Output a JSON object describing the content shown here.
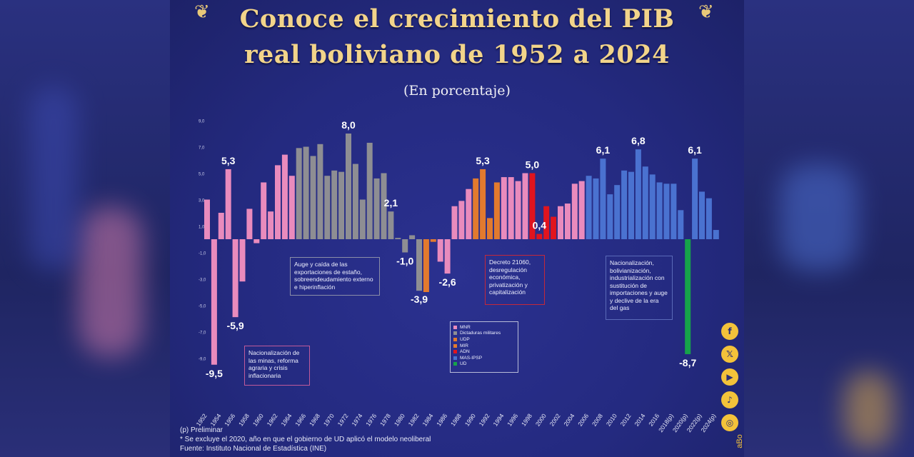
{
  "header": {
    "title_line1": "Conoce el crecimiento del PIB",
    "title_line2": "real boliviano de 1952 a 2024",
    "subtitle": "(En porcentaje)"
  },
  "notes": {
    "n1": "Nacionalización de las minas, reforma agraria y crisis inflacionaria",
    "n2": "Auge y caída de las exportaciones de estaño, sobreendeudamiento externo e hiperinflación",
    "n3": "Decreto 21060, desregulación económica, privatización y capitalización",
    "n4": "Nacionalización, bolivianización, industrialización con sustitución de importaciones y auge y declive de la era del gas"
  },
  "footer": {
    "line1": "(p) Preliminar",
    "line2": "* Se excluye el 2020, año en que el gobierno de UD aplicó el modelo neoliberal",
    "line3": "Fuente: Instituto Nacional de Estadística (INE)"
  },
  "social": {
    "icons": [
      "facebook-icon",
      "x-icon",
      "youtube-icon",
      "tiktok-icon",
      "instagram-icon"
    ],
    "tag": "aBo"
  },
  "colors": {
    "MNR": "#e98bbd",
    "Dictaduras militares": "#8e8e93",
    "UDP": "#e27a2e",
    "MIR": "#e27a2e",
    "ADN": "#e0141e",
    "MAS-IPSP": "#4a72d0",
    "UD": "#16a34a",
    "title": "#f2d48a",
    "background": "#242a80"
  },
  "chart_data": {
    "type": "bar",
    "title": "Conoce el crecimiento del PIB real boliviano de 1952 a 2024",
    "subtitle": "(En porcentaje)",
    "ylim": [
      -10,
      9
    ],
    "y_ticks": [
      9,
      7,
      5,
      3,
      1,
      -1,
      -3,
      -5,
      -7,
      -9
    ],
    "y_tick_labels": [
      "9,0",
      "7,0",
      "5,0",
      "3,0",
      "1,0",
      "-1,0",
      "-3,0",
      "-5,0",
      "-7,0",
      "-9,0"
    ],
    "x_tick_labels": [
      "1952",
      "1954",
      "1956",
      "1958",
      "1960",
      "1962",
      "1964",
      "1966",
      "1968",
      "1970",
      "1972",
      "1974",
      "1976",
      "1978",
      "1980",
      "1982",
      "1984",
      "1986",
      "1988",
      "1990",
      "1992",
      "1994",
      "1996",
      "1998",
      "2000",
      "2002",
      "2004",
      "2006",
      "2008",
      "2010",
      "2012",
      "2014",
      "2016",
      "2018(p)",
      "2020(p)",
      "2022(p)",
      "2024(p)"
    ],
    "legend": [
      "MNR",
      "Dictaduras militares",
      "UDP",
      "MIR",
      "ADN",
      "MAS-IPSP",
      "UD"
    ],
    "legend_position": "bottom-center",
    "series": [
      {
        "year": 1952,
        "value": 3.0,
        "group": "MNR"
      },
      {
        "year": 1953,
        "value": -9.5,
        "group": "MNR",
        "label": "-9,5"
      },
      {
        "year": 1954,
        "value": 2.0,
        "group": "MNR"
      },
      {
        "year": 1955,
        "value": 5.3,
        "group": "MNR",
        "label": "5,3"
      },
      {
        "year": 1956,
        "value": -5.9,
        "group": "MNR",
        "label": "-5,9"
      },
      {
        "year": 1957,
        "value": -3.2,
        "group": "MNR"
      },
      {
        "year": 1958,
        "value": 2.3,
        "group": "MNR"
      },
      {
        "year": 1959,
        "value": -0.3,
        "group": "MNR"
      },
      {
        "year": 1960,
        "value": 4.3,
        "group": "MNR"
      },
      {
        "year": 1961,
        "value": 2.1,
        "group": "MNR"
      },
      {
        "year": 1962,
        "value": 5.6,
        "group": "MNR"
      },
      {
        "year": 1963,
        "value": 6.4,
        "group": "MNR"
      },
      {
        "year": 1964,
        "value": 4.8,
        "group": "MNR"
      },
      {
        "year": 1965,
        "value": 6.9,
        "group": "Dictaduras militares"
      },
      {
        "year": 1966,
        "value": 7.0,
        "group": "Dictaduras militares"
      },
      {
        "year": 1967,
        "value": 6.3,
        "group": "Dictaduras militares"
      },
      {
        "year": 1968,
        "value": 7.2,
        "group": "Dictaduras militares"
      },
      {
        "year": 1969,
        "value": 4.8,
        "group": "Dictaduras militares"
      },
      {
        "year": 1970,
        "value": 5.2,
        "group": "Dictaduras militares"
      },
      {
        "year": 1971,
        "value": 5.1,
        "group": "Dictaduras militares"
      },
      {
        "year": 1972,
        "value": 8.0,
        "group": "Dictaduras militares",
        "label": "8,0"
      },
      {
        "year": 1973,
        "value": 5.7,
        "group": "Dictaduras militares"
      },
      {
        "year": 1974,
        "value": 3.0,
        "group": "Dictaduras militares"
      },
      {
        "year": 1975,
        "value": 7.3,
        "group": "Dictaduras militares"
      },
      {
        "year": 1976,
        "value": 4.6,
        "group": "Dictaduras militares"
      },
      {
        "year": 1977,
        "value": 5.0,
        "group": "Dictaduras militares"
      },
      {
        "year": 1978,
        "value": 2.1,
        "group": "Dictaduras militares",
        "label": "2,1"
      },
      {
        "year": 1979,
        "value": 0.1,
        "group": "Dictaduras militares"
      },
      {
        "year": 1980,
        "value": -1.0,
        "group": "Dictaduras militares",
        "label": "-1,0"
      },
      {
        "year": 1981,
        "value": 0.3,
        "group": "Dictaduras militares"
      },
      {
        "year": 1982,
        "value": -3.9,
        "group": "Dictaduras militares",
        "label": "-3,9"
      },
      {
        "year": 1983,
        "value": -4.0,
        "group": "UDP"
      },
      {
        "year": 1984,
        "value": -0.2,
        "group": "UDP"
      },
      {
        "year": 1985,
        "value": -1.7,
        "group": "MNR"
      },
      {
        "year": 1986,
        "value": -2.6,
        "group": "MNR",
        "label": "-2,6"
      },
      {
        "year": 1987,
        "value": 2.5,
        "group": "MNR"
      },
      {
        "year": 1988,
        "value": 2.9,
        "group": "MNR"
      },
      {
        "year": 1989,
        "value": 3.8,
        "group": "MNR"
      },
      {
        "year": 1990,
        "value": 4.6,
        "group": "MIR"
      },
      {
        "year": 1991,
        "value": 5.3,
        "group": "MIR",
        "label": "5,3"
      },
      {
        "year": 1992,
        "value": 1.6,
        "group": "MIR"
      },
      {
        "year": 1993,
        "value": 4.3,
        "group": "MIR"
      },
      {
        "year": 1994,
        "value": 4.7,
        "group": "MNR"
      },
      {
        "year": 1995,
        "value": 4.7,
        "group": "MNR"
      },
      {
        "year": 1996,
        "value": 4.4,
        "group": "MNR"
      },
      {
        "year": 1997,
        "value": 5.0,
        "group": "MNR"
      },
      {
        "year": 1998,
        "value": 5.0,
        "group": "ADN",
        "label": "5,0"
      },
      {
        "year": 1999,
        "value": 0.4,
        "group": "ADN",
        "label": "0,4"
      },
      {
        "year": 2000,
        "value": 2.5,
        "group": "ADN"
      },
      {
        "year": 2001,
        "value": 1.7,
        "group": "ADN"
      },
      {
        "year": 2002,
        "value": 2.5,
        "group": "MNR"
      },
      {
        "year": 2003,
        "value": 2.7,
        "group": "MNR"
      },
      {
        "year": 2004,
        "value": 4.2,
        "group": "MNR"
      },
      {
        "year": 2005,
        "value": 4.4,
        "group": "MNR"
      },
      {
        "year": 2006,
        "value": 4.8,
        "group": "MAS-IPSP"
      },
      {
        "year": 2007,
        "value": 4.6,
        "group": "MAS-IPSP"
      },
      {
        "year": 2008,
        "value": 6.1,
        "group": "MAS-IPSP",
        "label": "6,1"
      },
      {
        "year": 2009,
        "value": 3.4,
        "group": "MAS-IPSP"
      },
      {
        "year": 2010,
        "value": 4.1,
        "group": "MAS-IPSP"
      },
      {
        "year": 2011,
        "value": 5.2,
        "group": "MAS-IPSP"
      },
      {
        "year": 2012,
        "value": 5.1,
        "group": "MAS-IPSP"
      },
      {
        "year": 2013,
        "value": 6.8,
        "group": "MAS-IPSP",
        "label": "6,8"
      },
      {
        "year": 2014,
        "value": 5.5,
        "group": "MAS-IPSP"
      },
      {
        "year": 2015,
        "value": 4.9,
        "group": "MAS-IPSP"
      },
      {
        "year": 2016,
        "value": 4.3,
        "group": "MAS-IPSP"
      },
      {
        "year": 2017,
        "value": 4.2,
        "group": "MAS-IPSP"
      },
      {
        "year": 2018,
        "value": 4.2,
        "group": "MAS-IPSP"
      },
      {
        "year": 2019,
        "value": 2.2,
        "group": "MAS-IPSP"
      },
      {
        "year": 2020,
        "value": -8.7,
        "group": "UD",
        "label": "-8,7"
      },
      {
        "year": 2021,
        "value": 6.1,
        "group": "MAS-IPSP",
        "label": "6,1"
      },
      {
        "year": 2022,
        "value": 3.6,
        "group": "MAS-IPSP"
      },
      {
        "year": 2023,
        "value": 3.1,
        "group": "MAS-IPSP"
      },
      {
        "year": 2024,
        "value": 0.7,
        "group": "MAS-IPSP"
      }
    ]
  }
}
